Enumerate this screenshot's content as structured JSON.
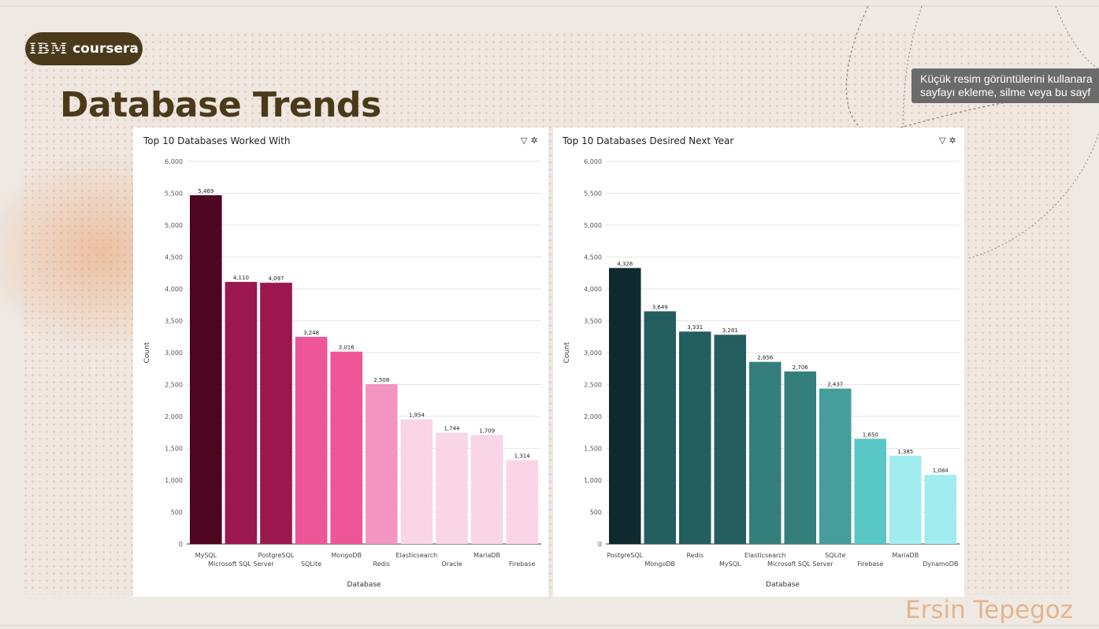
{
  "slide": {
    "title": "Database Trends",
    "author": "Ersin Tepegoz",
    "logo": {
      "brand_left": "IBM",
      "brand_right": "coursera"
    },
    "tooltip": {
      "line1": "Küçük resim görüntülerini kullanara",
      "line2": "sayfayı ekleme, silme veya bu sayf"
    }
  },
  "panels": {
    "left": {
      "filter_icon": "filter-icon",
      "settings_icon": "gear-icon"
    },
    "right": {
      "filter_icon": "filter-icon",
      "settings_icon": "gear-icon"
    }
  },
  "chart_data": [
    {
      "type": "bar",
      "title": "Top 10 Databases Worked With",
      "xlabel": "Database",
      "ylabel": "Count",
      "ylim": [
        0,
        6000
      ],
      "yticks": [
        0,
        500,
        1000,
        1500,
        2000,
        2500,
        3000,
        3500,
        4000,
        4500,
        5000,
        5500,
        6000
      ],
      "ytick_labels": [
        "0",
        "500",
        "1,000",
        "1,500",
        "2,000",
        "2,500",
        "3,000",
        "3,500",
        "4,000",
        "4,500",
        "5,000",
        "5,500",
        "6,000"
      ],
      "categories": [
        "MySQL",
        "Microsoft SQL Server",
        "PostgreSQL",
        "SQLite",
        "MongoDB",
        "Redis",
        "Elasticsearch",
        "Oracle",
        "MariaDB",
        "Firebase"
      ],
      "values": [
        5469,
        4110,
        4097,
        3248,
        3016,
        2508,
        1954,
        1744,
        1709,
        1314
      ],
      "value_labels": [
        "5,469",
        "4,110",
        "4,097",
        "3,248",
        "3,016",
        "2,508",
        "1,954",
        "1,744",
        "1,709",
        "1,314"
      ],
      "colors": [
        "#4e0620",
        "#9a1750",
        "#9a1750",
        "#ee5697",
        "#ee5697",
        "#f395c3",
        "#f9d5e6",
        "#f9d5e6",
        "#f9d5e6",
        "#f9d5e6"
      ],
      "grid": true
    },
    {
      "type": "bar",
      "title": "Top 10 Databases Desired Next Year",
      "xlabel": "Database",
      "ylabel": "Count",
      "ylim": [
        0,
        6000
      ],
      "yticks": [
        0,
        500,
        1000,
        1500,
        2000,
        2500,
        3000,
        3500,
        4000,
        4500,
        5000,
        5500,
        6000
      ],
      "ytick_labels": [
        "0",
        "500",
        "1,000",
        "1,500",
        "2,000",
        "2,500",
        "3,000",
        "3,500",
        "4,000",
        "4,500",
        "5,000",
        "5,500",
        "6,000"
      ],
      "categories": [
        "PostgreSQL",
        "MongoDB",
        "Redis",
        "MySQL",
        "Elasticsearch",
        "Microsoft SQL Server",
        "SQLite",
        "Firebase",
        "MariaDB",
        "DynamoDB"
      ],
      "values": [
        4328,
        3649,
        3331,
        3281,
        2856,
        2706,
        2437,
        1650,
        1385,
        1084
      ],
      "value_labels": [
        "4,328",
        "3,649",
        "3,331",
        "3,281",
        "2,856",
        "2,706",
        "2,437",
        "1,650",
        "1,385",
        "1,084"
      ],
      "colors": [
        "#0e2a2e",
        "#245e5e",
        "#245e5e",
        "#245e5e",
        "#347f7b",
        "#347f7b",
        "#459e9c",
        "#58c7c6",
        "#a0ecee",
        "#a0ecee"
      ],
      "grid": true
    }
  ]
}
